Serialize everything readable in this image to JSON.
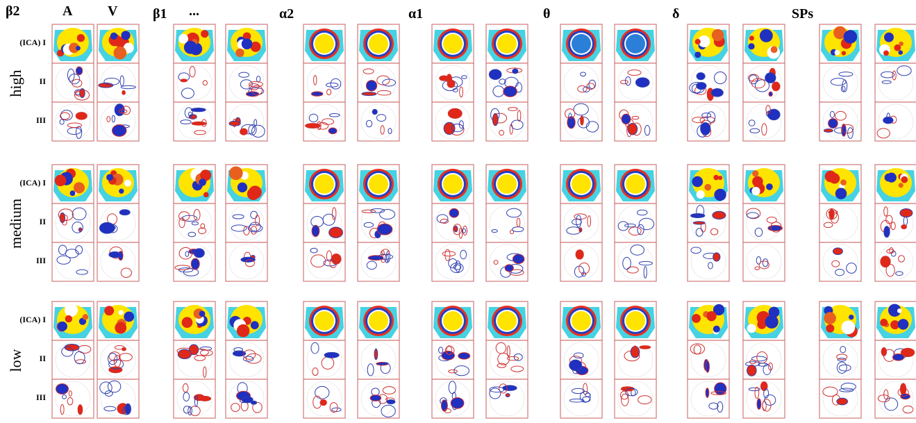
{
  "header": {
    "labels": [
      "β2",
      "A",
      "V",
      "β1",
      "...",
      "α2",
      "α1",
      "θ",
      "δ",
      "SPs"
    ]
  },
  "rows": [
    {
      "label": "high",
      "components": [
        "(ICA) I",
        "II",
        "III"
      ]
    },
    {
      "label": "medium",
      "components": [
        "(ICA) I",
        "II",
        "III"
      ]
    },
    {
      "label": "low",
      "components": [
        "(ICA) I",
        "II",
        "III"
      ]
    }
  ]
}
